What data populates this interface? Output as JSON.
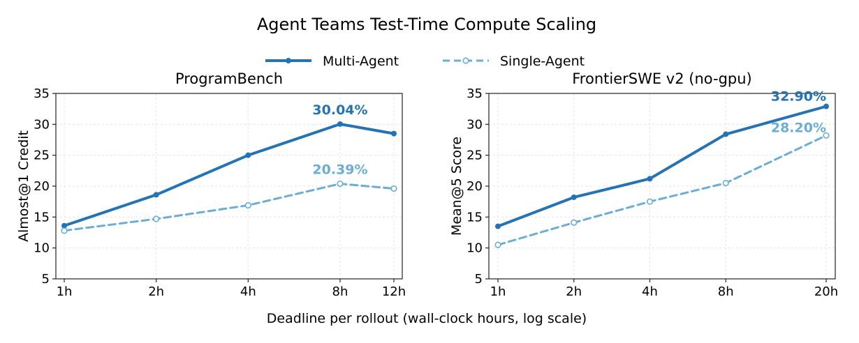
{
  "figure": {
    "title": "Agent Teams Test-Time Compute Scaling",
    "xlabel": "Deadline per rollout (wall-clock hours, log scale)"
  },
  "legend": {
    "placement": "top-center",
    "entries": [
      {
        "label": "Multi-Agent",
        "color": "#2474b5",
        "style": "solid",
        "marker": "filled-circle"
      },
      {
        "label": "Single-Agent",
        "color": "#6aaed6",
        "style": "dashed",
        "marker": "open-circle"
      }
    ]
  },
  "chart_data": [
    {
      "type": "line",
      "title": "ProgramBench",
      "xlabel": "",
      "ylabel": "Almost@1 Credit",
      "xscale": "log",
      "x": [
        1,
        2,
        4,
        8,
        12
      ],
      "xticklabels": [
        "1h",
        "2h",
        "4h",
        "8h",
        "12h"
      ],
      "ylim": [
        5,
        35
      ],
      "yticks": [
        5,
        10,
        15,
        20,
        25,
        30,
        35
      ],
      "grid": true,
      "series": [
        {
          "name": "Multi-Agent",
          "values": [
            13.6,
            18.6,
            25.0,
            30.04,
            28.5
          ]
        },
        {
          "name": "Single-Agent",
          "values": [
            12.8,
            14.7,
            16.9,
            20.39,
            19.6
          ]
        }
      ],
      "annotations": [
        {
          "text": "30.04%",
          "series": "Multi-Agent",
          "x": 8,
          "y": 30.04
        },
        {
          "text": "20.39%",
          "series": "Single-Agent",
          "x": 8,
          "y": 20.39
        }
      ]
    },
    {
      "type": "line",
      "title": "FrontierSWE v2 (no-gpu)",
      "xlabel": "",
      "ylabel": "Mean@5 Score",
      "xscale": "log",
      "x": [
        1,
        2,
        4,
        8,
        20
      ],
      "xticklabels": [
        "1h",
        "2h",
        "4h",
        "8h",
        "20h"
      ],
      "ylim": [
        5,
        35
      ],
      "yticks": [
        5,
        10,
        15,
        20,
        25,
        30,
        35
      ],
      "grid": true,
      "series": [
        {
          "name": "Multi-Agent",
          "values": [
            13.5,
            18.2,
            21.2,
            28.4,
            32.9
          ]
        },
        {
          "name": "Single-Agent",
          "values": [
            10.5,
            14.1,
            17.5,
            20.5,
            28.2
          ]
        }
      ],
      "annotations": [
        {
          "text": "32.90%",
          "series": "Multi-Agent",
          "x": 20,
          "y": 32.9
        },
        {
          "text": "28.20%",
          "series": "Single-Agent",
          "x": 20,
          "y": 28.2
        }
      ]
    }
  ]
}
